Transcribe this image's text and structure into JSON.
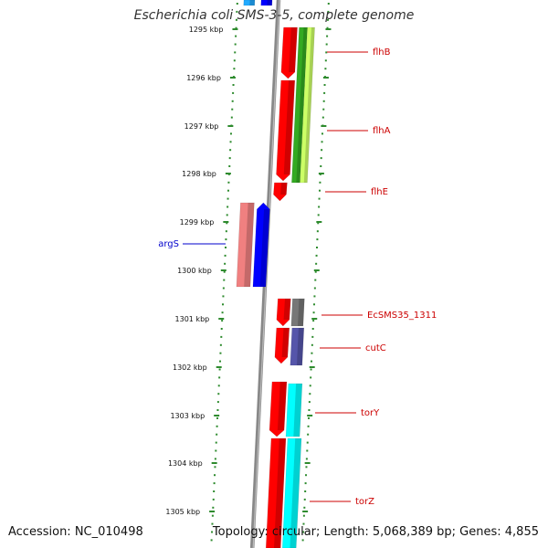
{
  "title": "Escherichia coli SMS-3-5, complete genome",
  "footer": {
    "accession": "Accession: NC_010498",
    "summary": "Topology: circular; Length: 5,068,389 bp; Genes: 4,855"
  },
  "ruler": {
    "unit": "kbp",
    "ticks": [
      1295,
      1296,
      1297,
      1298,
      1299,
      1300,
      1301,
      1302,
      1303,
      1304,
      1305
    ],
    "tick_labels": [
      "1295 kbp",
      "1296 kbp",
      "1297 kbp",
      "1298 kbp",
      "1299 kbp",
      "1300 kbp",
      "1301 kbp",
      "1302 kbp",
      "1303 kbp",
      "1304 kbp",
      "1305 kbp"
    ]
  },
  "colors": {
    "forward_cds": "#ff0000",
    "reverse_strand_feature": "#0000ff",
    "rna": "#f08080",
    "cyan_track": "#00ffff",
    "green_track": "#66cc00",
    "lime_track": "#ccff66",
    "grey_track": "#777777",
    "purple_track": "#5555aa",
    "backbone": "#888888",
    "dotted_ring": "#2e8b2e",
    "label_red": "#cc0000",
    "label_blue": "#0000cc"
  },
  "gene_labels": [
    {
      "name": "flhB",
      "color": "red"
    },
    {
      "name": "flhA",
      "color": "red"
    },
    {
      "name": "flhE",
      "color": "red"
    },
    {
      "name": "argS",
      "color": "blue"
    },
    {
      "name": "EcSMS35_1311",
      "color": "red"
    },
    {
      "name": "cutC",
      "color": "red"
    },
    {
      "name": "torY",
      "color": "red"
    },
    {
      "name": "torZ",
      "color": "red"
    }
  ]
}
